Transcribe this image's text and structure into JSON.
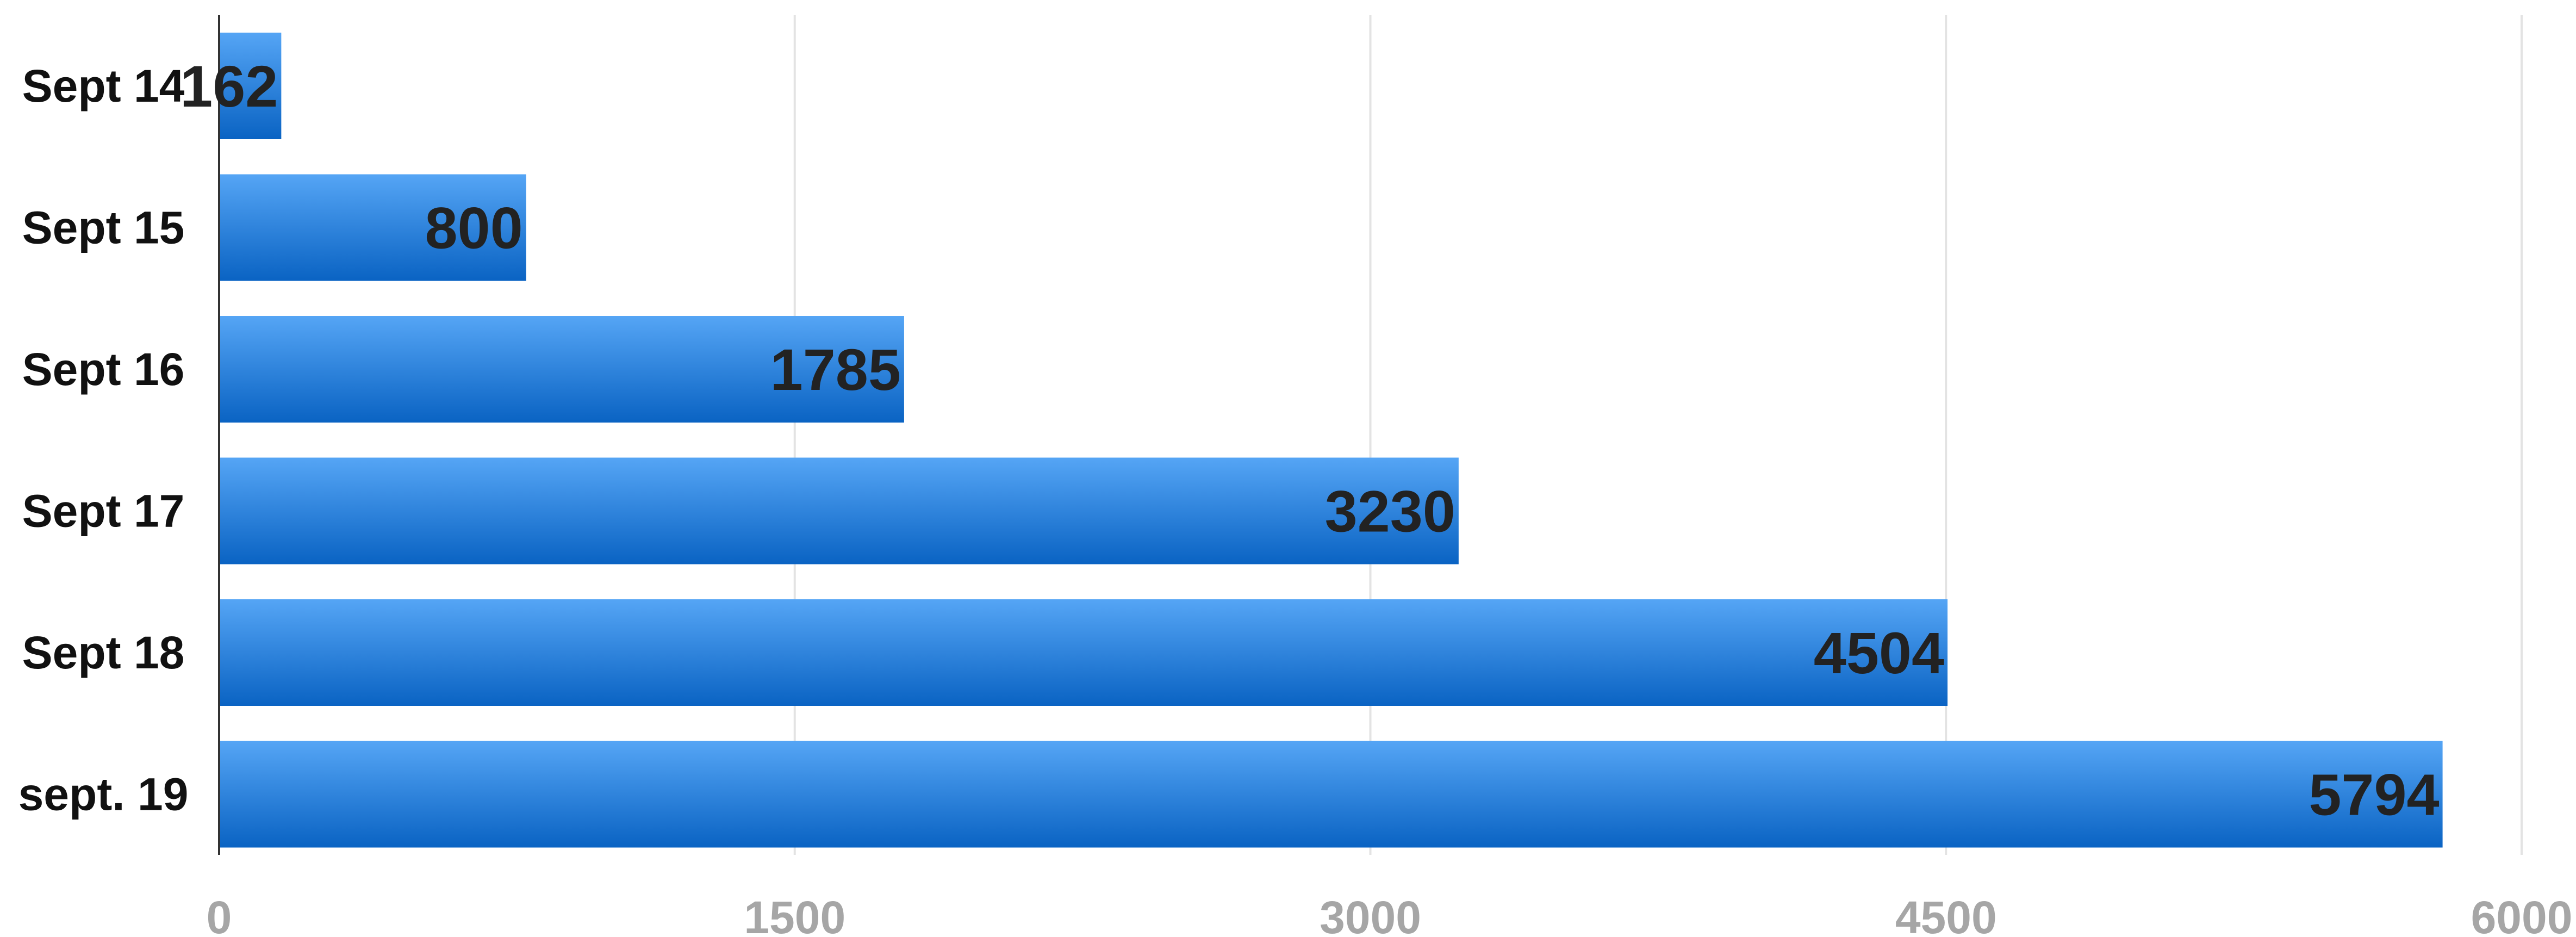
{
  "chart_data": {
    "type": "bar",
    "orientation": "horizontal",
    "categories": [
      "Sept 14",
      "Sept 15",
      "Sept 16",
      "Sept 17",
      "Sept 18",
      "sept. 19"
    ],
    "values": [
      162,
      800,
      1785,
      3230,
      4504,
      5794
    ],
    "xlim": [
      0,
      6000
    ],
    "xticks": [
      "0",
      "1500",
      "3000",
      "4500",
      "6000"
    ],
    "grid": true,
    "colors": {
      "bar_top": "#55a5f5",
      "bar_bottom": "#0a63c3",
      "grid": "#e3e3e3",
      "axis": "#333333"
    }
  }
}
